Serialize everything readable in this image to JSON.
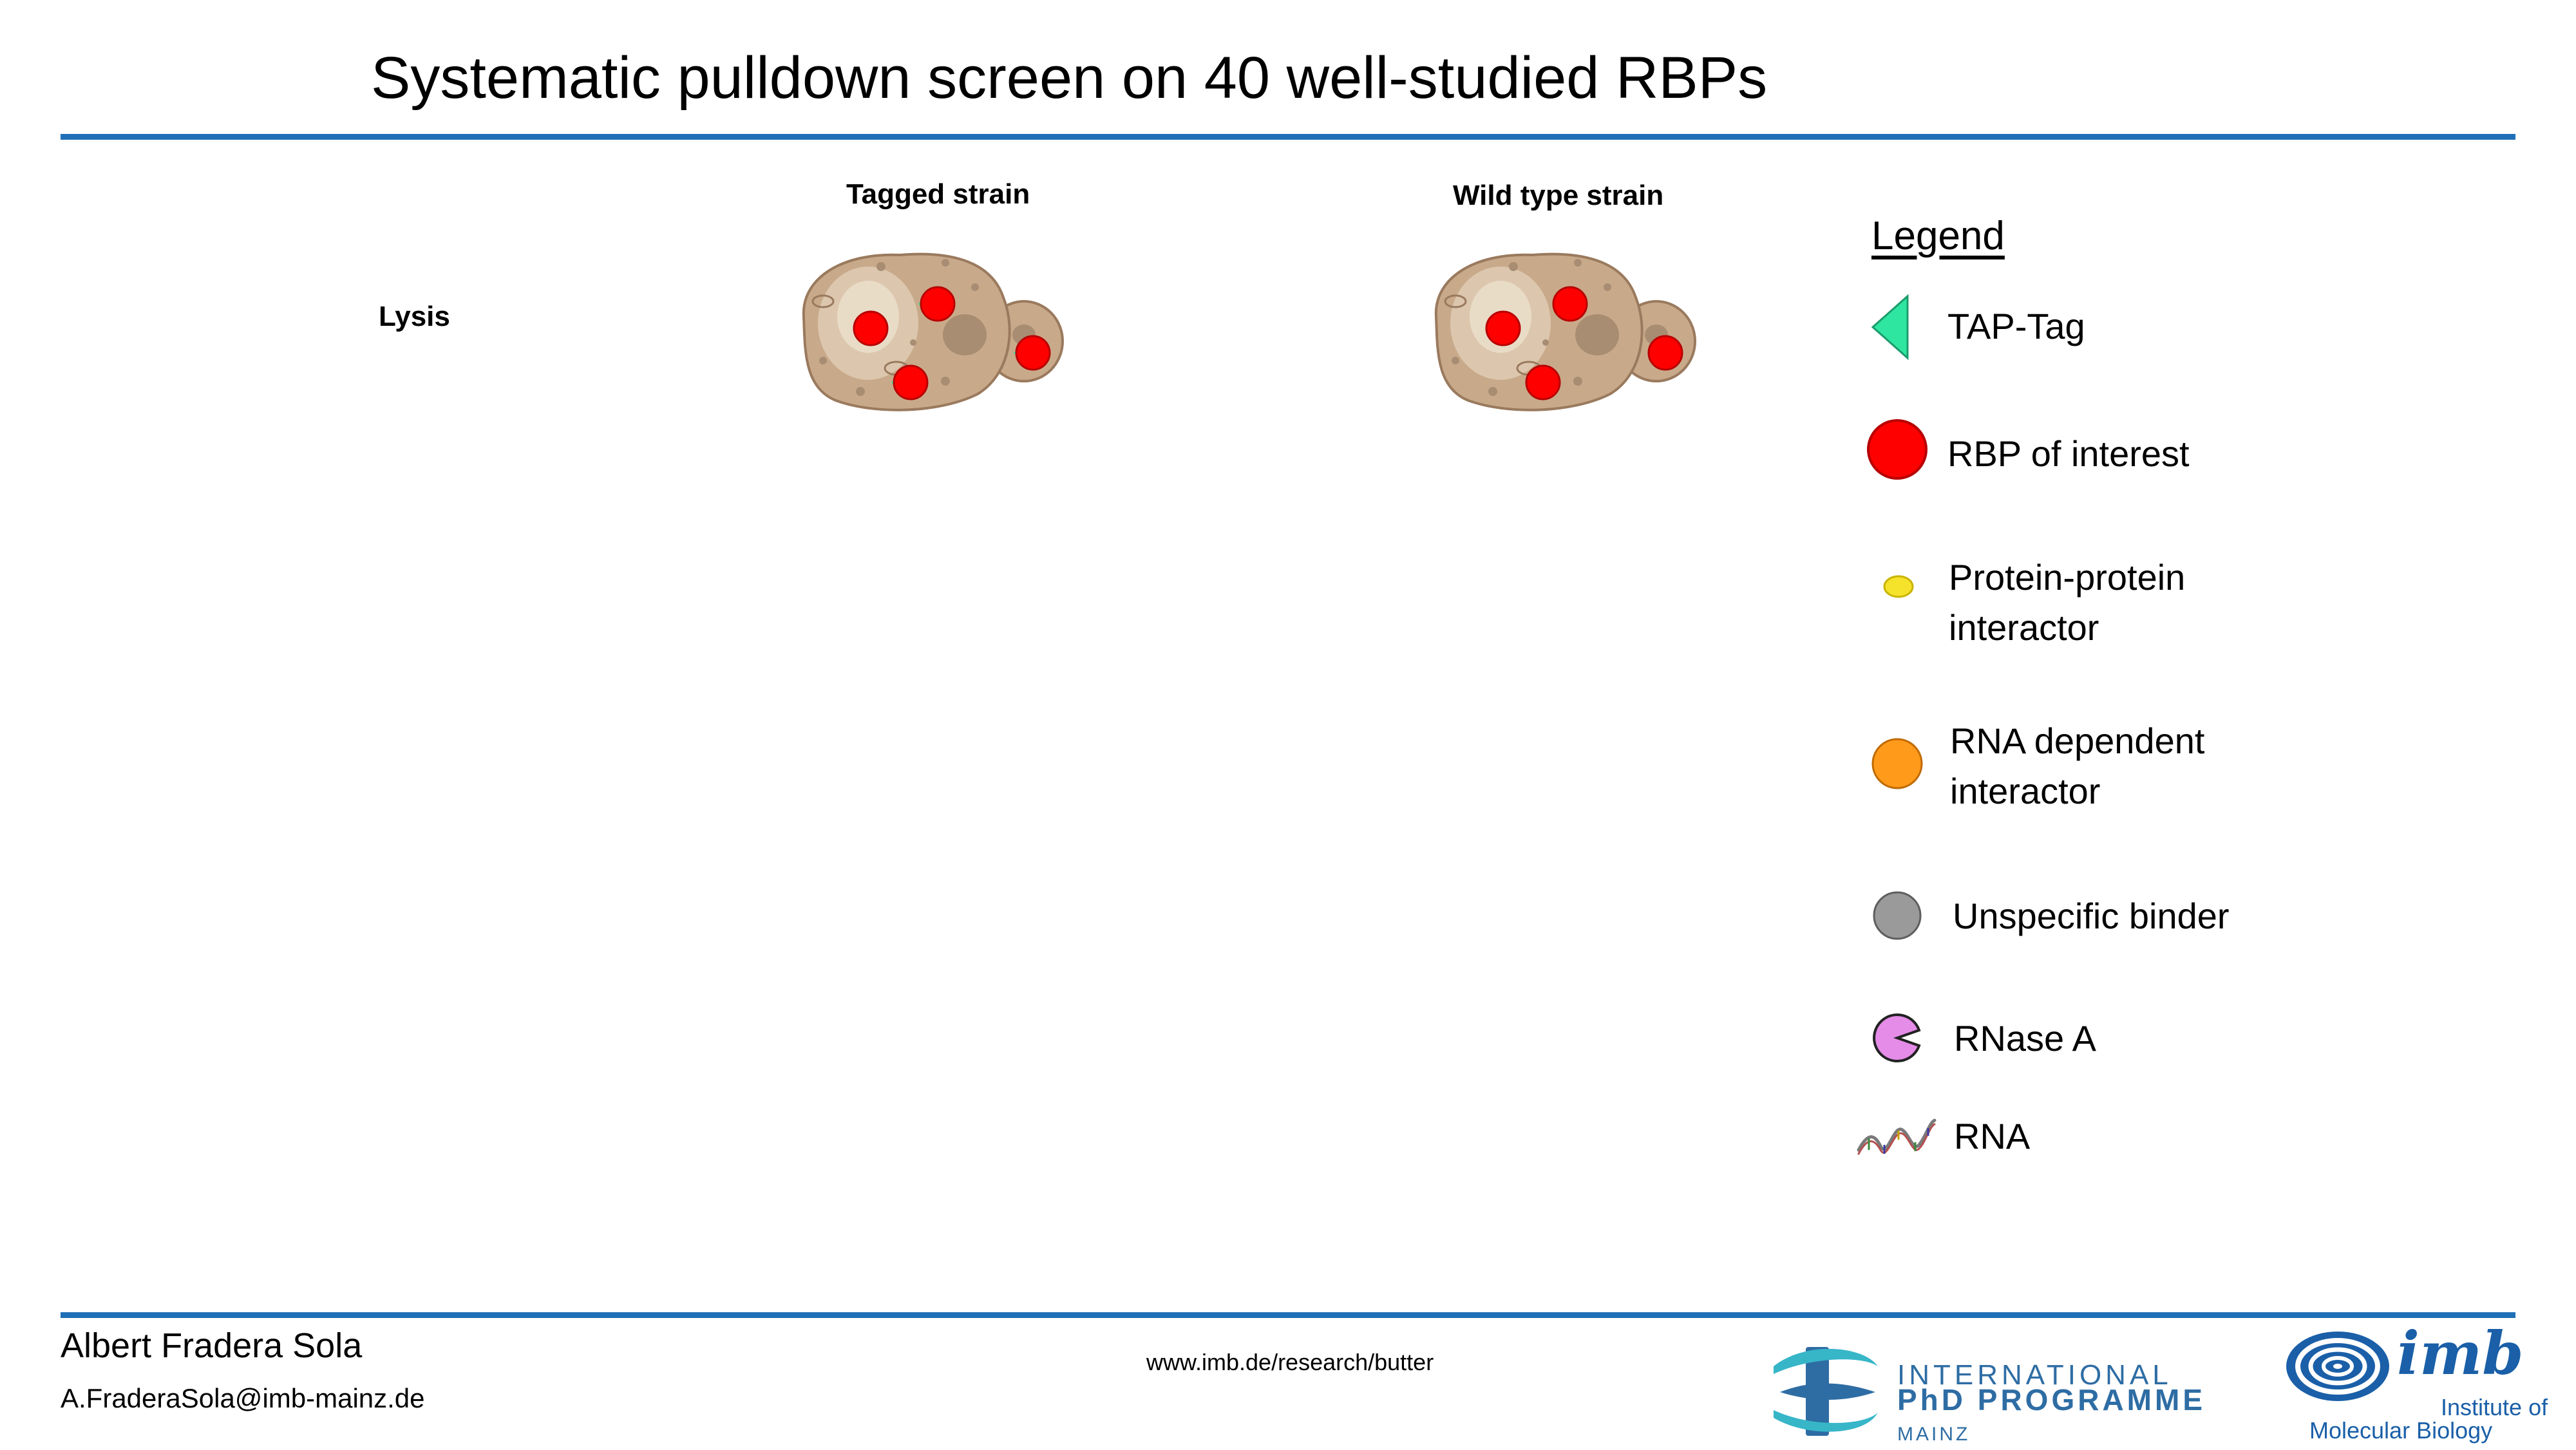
{
  "slide": {
    "title": "Systematic pulldown screen on 40 well-studied RBPs",
    "step_label": "Lysis"
  },
  "cells": {
    "tagged_label": "Tagged strain",
    "wildtype_label": "Wild type strain"
  },
  "legend": {
    "title": "Legend",
    "items": [
      {
        "icon": "tap-tag-triangle-icon",
        "color": "#2ee6a0",
        "label_line1": "TAP-Tag",
        "label_line2": ""
      },
      {
        "icon": "rbp-circle-icon",
        "color": "#ff0000",
        "label_line1": "RBP of interest",
        "label_line2": ""
      },
      {
        "icon": "protein-interactor-ellipse-icon",
        "color": "#f5e22a",
        "label_line1": "Protein-protein",
        "label_line2": "interactor"
      },
      {
        "icon": "rna-dependent-interactor-circle-icon",
        "color": "#ff9a1a",
        "label_line1": "RNA dependent",
        "label_line2": "interactor"
      },
      {
        "icon": "unspecific-binder-circle-icon",
        "color": "#9a9a9a",
        "label_line1": "Unspecific binder",
        "label_line2": ""
      },
      {
        "icon": "rnase-a-pacman-icon",
        "color": "#e58be8",
        "label_line1": "RNase A",
        "label_line2": ""
      },
      {
        "icon": "rna-wave-icon",
        "color": "#7a7a7a",
        "label_line1": "RNA",
        "label_line2": ""
      }
    ]
  },
  "footer": {
    "author": "Albert Fradera Sola",
    "email": "A.FraderaSola@imb-mainz.de",
    "url": "www.imb.de/research/butter",
    "phd_line1": "INTERNATIONAL",
    "phd_line2": "PhD PROGRAMME",
    "phd_line3": "MAINZ",
    "imb_logo_text": "imb",
    "imb_line1": "Institute of",
    "imb_line2": "Molecular Biology"
  },
  "colors": {
    "accent_rule": "#1f6fb6",
    "cell_body": "#c8aa8a",
    "nucleus": "#e8dbc8",
    "rbp": "#ff0000",
    "tap_tag": "#2ee6a0"
  }
}
